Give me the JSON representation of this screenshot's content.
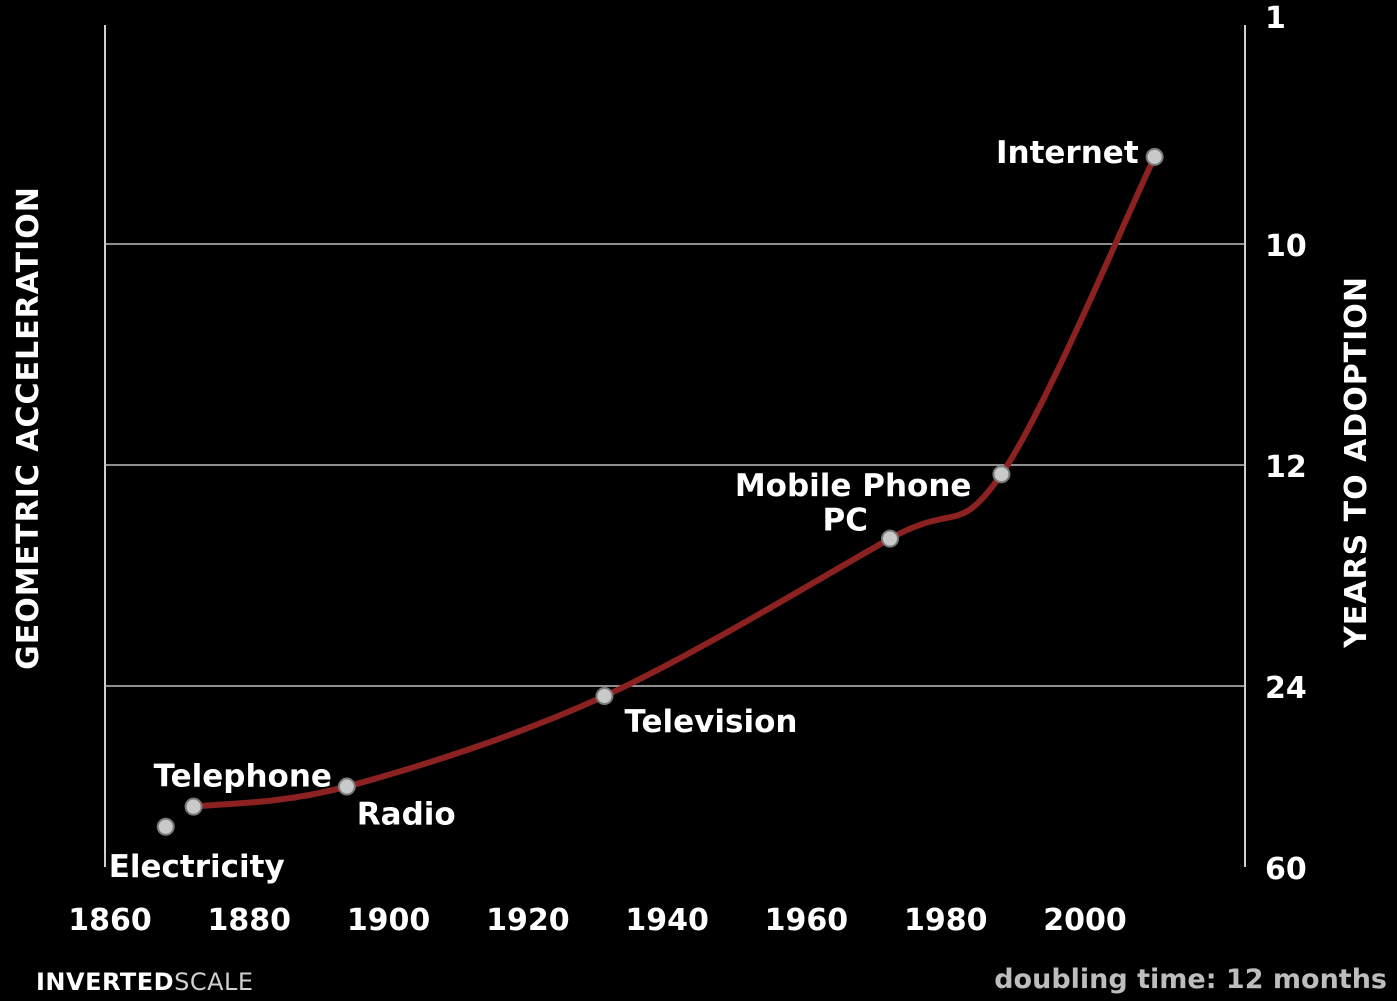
{
  "chart_data": {
    "type": "line",
    "x_axis": {
      "ticks": [
        1860,
        1880,
        1900,
        1920,
        1940,
        1960,
        1980,
        2000
      ],
      "range": [
        1860,
        2020
      ]
    },
    "y_axis": {
      "ticks": [
        1,
        10,
        12,
        24,
        60
      ],
      "inverted": true,
      "position": "right"
    },
    "ylabel_left": "GEOMETRIC ACCELERATION",
    "ylabel_right": "YEARS TO ADOPTION",
    "grid": true,
    "points": [
      {
        "label": "Electricity",
        "x": 1868,
        "y": 52
      },
      {
        "label": "Telephone",
        "x": 1872,
        "y": 48
      },
      {
        "label": "Radio",
        "x": 1894,
        "y": 44
      },
      {
        "label": "Television",
        "x": 1931,
        "y": 26
      },
      {
        "label": "PC",
        "x": 1972,
        "y": 16
      },
      {
        "label": "Mobile Phone",
        "x": 1988,
        "y": 12.5
      },
      {
        "label": "Internet",
        "x": 2010,
        "y": 6.5
      }
    ]
  },
  "footer": {
    "brand_bold": "INVERTED",
    "brand_light": "SCALE",
    "note": "doubling time: 12 months"
  }
}
